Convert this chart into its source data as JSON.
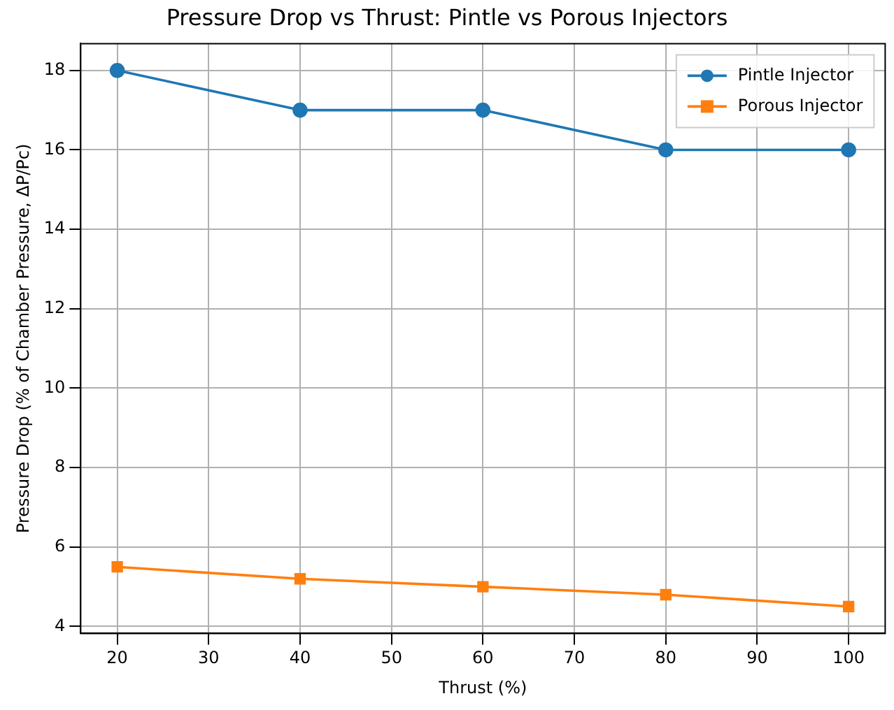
{
  "chart_data": {
    "type": "line",
    "title": "Pressure Drop vs Thrust: Pintle vs Porous Injectors",
    "xlabel": "Thrust (%)",
    "ylabel": "Pressure Drop (% of Chamber Pressure, ΔP/Pc)",
    "x": [
      20,
      40,
      60,
      80,
      100
    ],
    "series": [
      {
        "name": "Pintle Injector",
        "color": "#1f77b4",
        "marker": "circle",
        "values": [
          18,
          17,
          17,
          16,
          16
        ]
      },
      {
        "name": "Porous Injector",
        "color": "#ff7f0e",
        "marker": "square",
        "values": [
          5.5,
          5.2,
          5.0,
          4.8,
          4.5
        ]
      }
    ],
    "xlim": [
      16,
      104
    ],
    "xticks": [
      20,
      30,
      40,
      50,
      60,
      70,
      80,
      90,
      100
    ],
    "ylim": [
      3.825,
      18.675
    ],
    "yticks": [
      4,
      6,
      8,
      10,
      12,
      14,
      16,
      18
    ],
    "grid": true,
    "legend": "top right",
    "line_style": "solid"
  }
}
